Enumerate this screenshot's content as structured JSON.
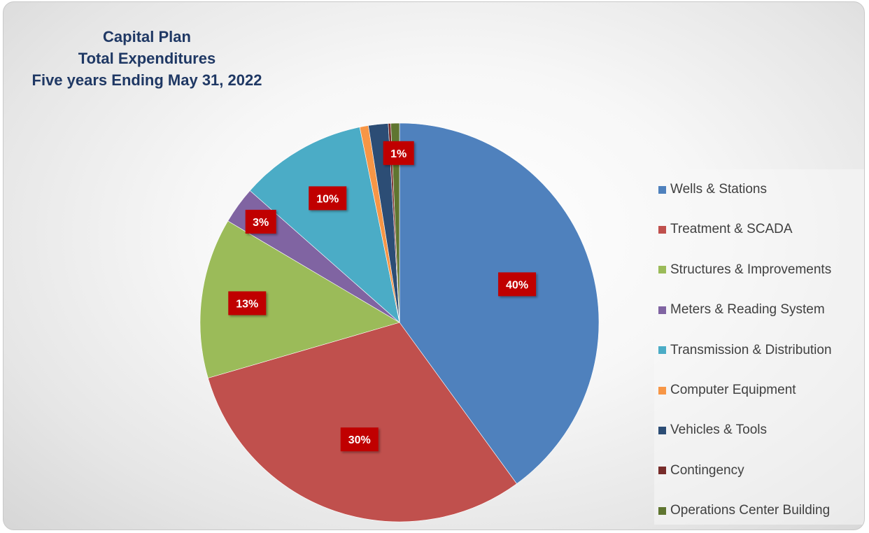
{
  "chart_data": {
    "type": "pie",
    "title_lines": [
      "Capital Plan",
      "Total Expenditures",
      "Five years Ending May 31, 2022"
    ],
    "slices": [
      {
        "name": "Wells & Stations",
        "value": 40,
        "color": "#4f81bd",
        "label": "40%"
      },
      {
        "name": "Treatment & SCADA",
        "value": 30.5,
        "color": "#c0504d",
        "label": "30%"
      },
      {
        "name": "Structures & Improvements",
        "value": 13,
        "color": "#9bbb59",
        "label": "13%"
      },
      {
        "name": "Meters & Reading System",
        "value": 3,
        "color": "#8064a2",
        "label": "3%"
      },
      {
        "name": "Transmission & Distribution",
        "value": 10.3,
        "color": "#4bacc6",
        "label": "10%"
      },
      {
        "name": "Computer Equipment",
        "value": 0.7,
        "color": "#f79646",
        "label": ""
      },
      {
        "name": "Vehicles & Tools",
        "value": 1.6,
        "color": "#2c4d75",
        "label": ""
      },
      {
        "name": "Contingency",
        "value": 0.2,
        "color": "#772c2a",
        "label": ""
      },
      {
        "name": "Operations Center Building",
        "value": 0.7,
        "color": "#5f7530",
        "label": "1%"
      }
    ],
    "legend_position": "right",
    "start_angle": "12 o'clock, clockwise"
  }
}
